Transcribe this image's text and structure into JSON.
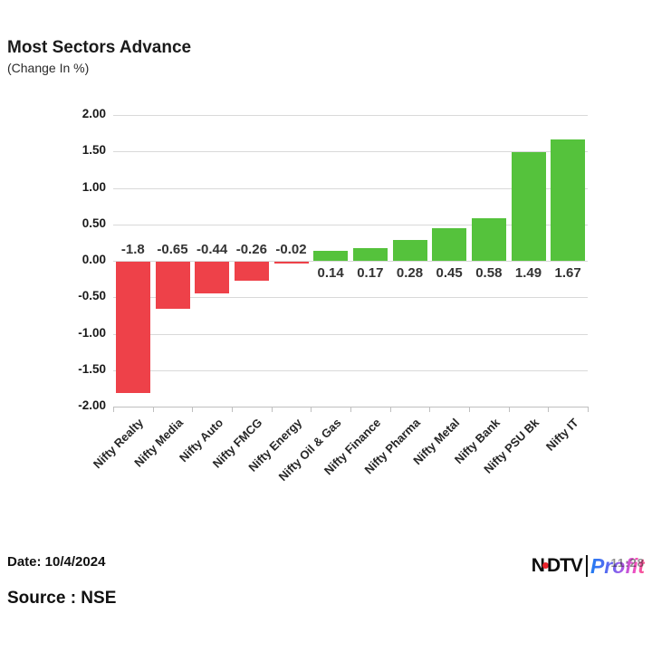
{
  "header": {
    "title": "Most Sectors Advance",
    "subtitle": "(Change In %)"
  },
  "chart_data": {
    "type": "bar",
    "title": "Most Sectors Advance",
    "subtitle": "(Change In %)",
    "categories": [
      "Nifty Realty",
      "Nifty Media",
      "Nifty Auto",
      "Nifty FMCG",
      "Nifty Energy",
      "Nifty Oil & Gas",
      "Nifty Finance",
      "Nifty Pharma",
      "Nifty Metal",
      "Nifty Bank",
      "Nifty PSU Bk",
      "Nifty IT"
    ],
    "values": [
      -1.8,
      -0.65,
      -0.44,
      -0.26,
      -0.02,
      0.14,
      0.17,
      0.28,
      0.45,
      0.58,
      1.49,
      1.67
    ],
    "value_labels": [
      "-1.8",
      "-0.65",
      "-0.44",
      "-0.26",
      "-0.02",
      "0.14",
      "0.17",
      "0.28",
      "0.45",
      "0.58",
      "1.49",
      "1.67"
    ],
    "ylim": [
      -2.0,
      2.0
    ],
    "ytick_step": 0.5,
    "ytick_labels": [
      "2.00",
      "1.50",
      "1.00",
      "0.50",
      "0.00",
      "-0.50",
      "-1.00",
      "-1.50",
      "-2.00"
    ],
    "grid": true,
    "legend": "none",
    "xlabel": "",
    "ylabel": "",
    "colors": {
      "positive": "#55c23c",
      "negative": "#ee4149"
    }
  },
  "footer": {
    "date_label": "Date: 10/4/2024",
    "source_label": "Source : NSE",
    "logo": {
      "ndtv_text": "NDTV",
      "separator": "|",
      "profit_text": "Profit",
      "timestamp_overlay": "11:28"
    }
  }
}
